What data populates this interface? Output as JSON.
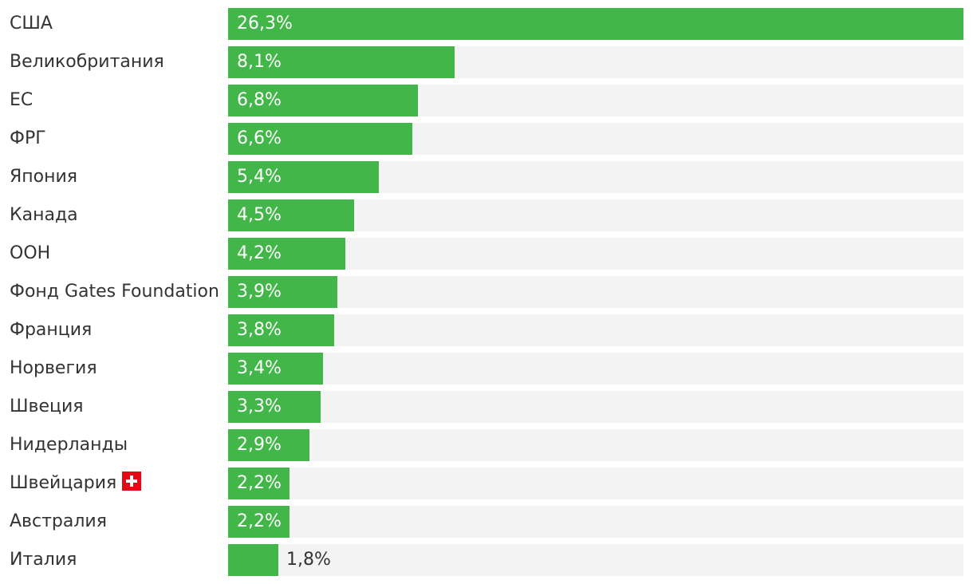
{
  "chart_data": {
    "type": "bar",
    "orientation": "horizontal",
    "title": "",
    "xlabel": "",
    "ylabel": "",
    "xlim": [
      0,
      26.3
    ],
    "categories": [
      "США",
      "Великобритания",
      "ЕС",
      "ФРГ",
      "Япония",
      "Канада",
      "ООН",
      "Фонд Gates Foundation",
      "Франция",
      "Норвегия",
      "Швеция",
      "Нидерланды",
      "Швейцария",
      "Австралия",
      "Италия"
    ],
    "values": [
      26.3,
      8.1,
      6.8,
      6.6,
      5.4,
      4.5,
      4.2,
      3.9,
      3.8,
      3.4,
      3.3,
      2.9,
      2.2,
      2.2,
      1.8
    ],
    "value_labels": [
      "26,3%",
      "8,1%",
      "6,8%",
      "6,6%",
      "5,4%",
      "4,5%",
      "4,2%",
      "3,9%",
      "3,8%",
      "3,4%",
      "3,3%",
      "2,9%",
      "2,2%",
      "2,2%",
      "1,8%"
    ],
    "flag_icons": {
      "Швейцария": "swiss-flag-icon"
    },
    "colors": {
      "bar": "#42b649",
      "track": "#f3f3f3",
      "label_text": "#333333",
      "value_text_inside": "#ffffff",
      "flag_red": "#e30613",
      "flag_white": "#ffffff"
    }
  }
}
